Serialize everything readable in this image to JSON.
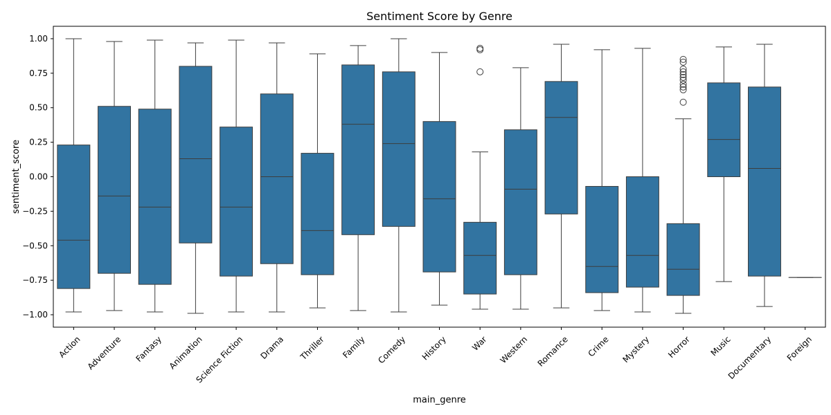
{
  "chart_data": {
    "type": "box",
    "title": "Sentiment Score by Genre",
    "xlabel": "main_genre",
    "ylabel": "sentiment_score",
    "ylim": [
      -1.09,
      1.09
    ],
    "yticks": [
      -1.0,
      -0.75,
      -0.5,
      -0.25,
      0.0,
      0.25,
      0.5,
      0.75,
      1.0
    ],
    "ytick_labels": [
      "−1.00",
      "−0.75",
      "−0.50",
      "−0.25",
      "0.00",
      "0.25",
      "0.50",
      "0.75",
      "1.00"
    ],
    "grid": false,
    "legend": "none",
    "box_color": "#3274a1",
    "line_color": "#3d3d3d",
    "categories": [
      "Action",
      "Adventure",
      "Fantasy",
      "Animation",
      "Science Fiction",
      "Drama",
      "Thriller",
      "Family",
      "Comedy",
      "History",
      "War",
      "Western",
      "Romance",
      "Crime",
      "Mystery",
      "Horror",
      "Music",
      "Documentary",
      "Foreign"
    ],
    "boxes": [
      {
        "whislo": -0.98,
        "q1": -0.81,
        "med": -0.46,
        "q3": 0.23,
        "whishi": 1.0,
        "fliers": []
      },
      {
        "whislo": -0.97,
        "q1": -0.7,
        "med": -0.14,
        "q3": 0.51,
        "whishi": 0.98,
        "fliers": []
      },
      {
        "whislo": -0.98,
        "q1": -0.78,
        "med": -0.22,
        "q3": 0.49,
        "whishi": 0.99,
        "fliers": []
      },
      {
        "whislo": -0.99,
        "q1": -0.48,
        "med": 0.13,
        "q3": 0.8,
        "whishi": 0.97,
        "fliers": []
      },
      {
        "whislo": -0.98,
        "q1": -0.72,
        "med": -0.22,
        "q3": 0.36,
        "whishi": 0.99,
        "fliers": []
      },
      {
        "whislo": -0.98,
        "q1": -0.63,
        "med": 0.0,
        "q3": 0.6,
        "whishi": 0.97,
        "fliers": []
      },
      {
        "whislo": -0.95,
        "q1": -0.71,
        "med": -0.39,
        "q3": 0.17,
        "whishi": 0.89,
        "fliers": []
      },
      {
        "whislo": -0.97,
        "q1": -0.42,
        "med": 0.38,
        "q3": 0.81,
        "whishi": 0.95,
        "fliers": []
      },
      {
        "whislo": -0.98,
        "q1": -0.36,
        "med": 0.24,
        "q3": 0.76,
        "whishi": 1.0,
        "fliers": []
      },
      {
        "whislo": -0.93,
        "q1": -0.69,
        "med": -0.16,
        "q3": 0.4,
        "whishi": 0.9,
        "fliers": []
      },
      {
        "whislo": -0.96,
        "q1": -0.85,
        "med": -0.57,
        "q3": -0.33,
        "whishi": 0.18,
        "fliers": [
          0.76,
          0.92,
          0.93
        ]
      },
      {
        "whislo": -0.96,
        "q1": -0.71,
        "med": -0.09,
        "q3": 0.34,
        "whishi": 0.79,
        "fliers": []
      },
      {
        "whislo": -0.95,
        "q1": -0.27,
        "med": 0.43,
        "q3": 0.69,
        "whishi": 0.96,
        "fliers": []
      },
      {
        "whislo": -0.97,
        "q1": -0.84,
        "med": -0.65,
        "q3": -0.07,
        "whishi": 0.92,
        "fliers": []
      },
      {
        "whislo": -0.98,
        "q1": -0.8,
        "med": -0.57,
        "q3": 0.0,
        "whishi": 0.93,
        "fliers": []
      },
      {
        "whislo": -0.99,
        "q1": -0.86,
        "med": -0.67,
        "q3": -0.34,
        "whishi": 0.42,
        "fliers": [
          0.54,
          0.63,
          0.65,
          0.67,
          0.7,
          0.72,
          0.74,
          0.76,
          0.78,
          0.83,
          0.85
        ]
      },
      {
        "whislo": -0.76,
        "q1": 0.0,
        "med": 0.27,
        "q3": 0.68,
        "whishi": 0.94,
        "fliers": []
      },
      {
        "whislo": -0.94,
        "q1": -0.72,
        "med": 0.06,
        "q3": 0.65,
        "whishi": 0.96,
        "fliers": []
      },
      {
        "whislo": -0.73,
        "q1": -0.73,
        "med": -0.73,
        "q3": -0.73,
        "whishi": -0.73,
        "fliers": []
      }
    ]
  }
}
